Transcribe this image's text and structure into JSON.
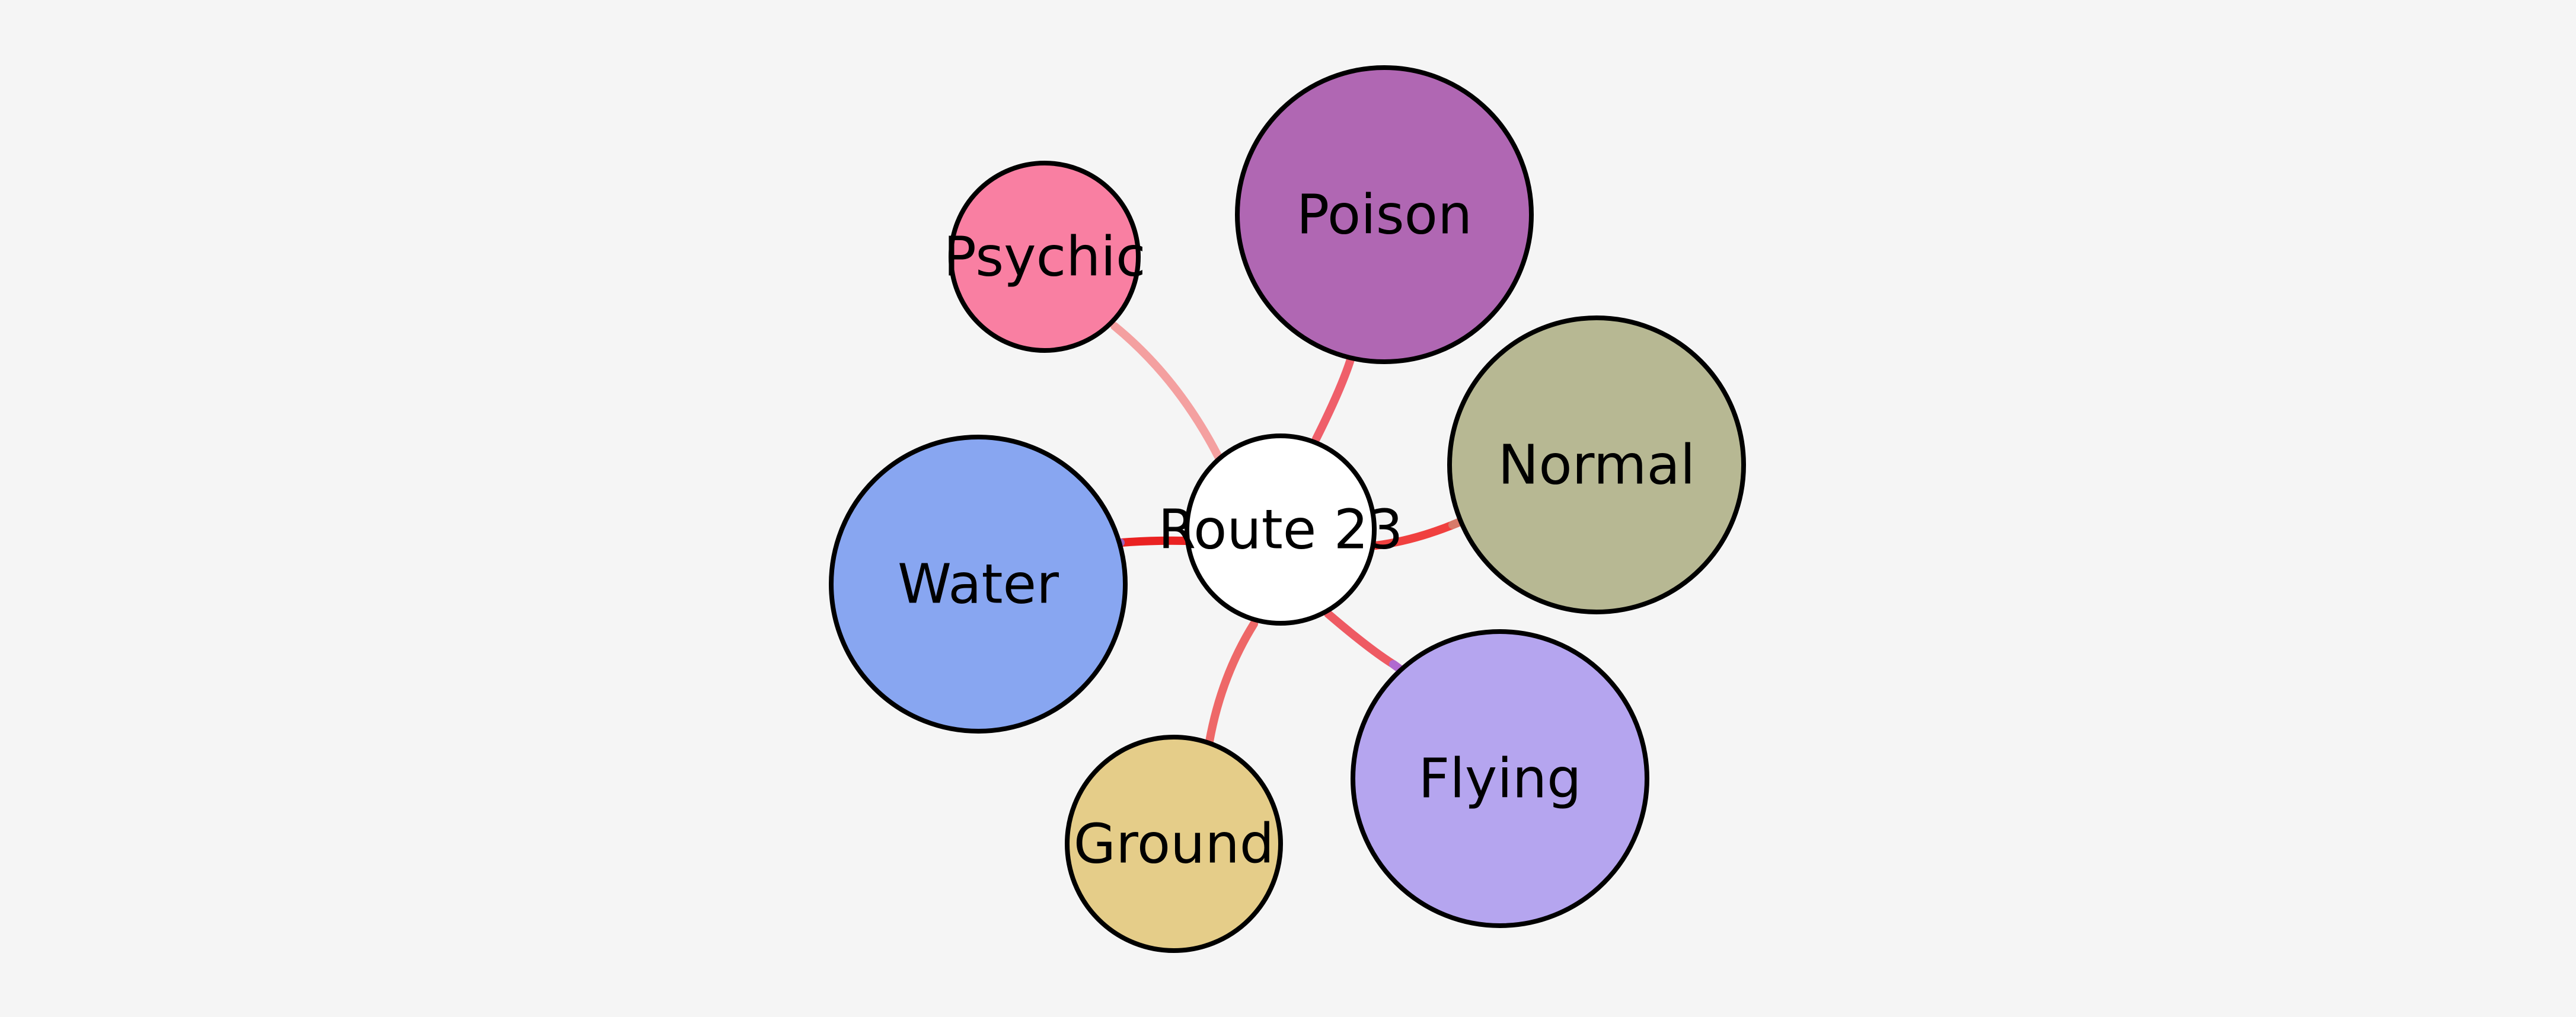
{
  "background": "#f5f5f5",
  "center": {
    "label": "Route 23",
    "color": "#ffffff",
    "stroke": "#000000"
  },
  "types": [
    {
      "id": "psychic",
      "label": "Psychic",
      "color": "#f97fa2",
      "stroke": "#000000"
    },
    {
      "id": "poison",
      "label": "Poison",
      "color": "#b067b3",
      "stroke": "#000000"
    },
    {
      "id": "normal",
      "label": "Normal",
      "color": "#b7b893",
      "stroke": "#000000"
    },
    {
      "id": "water",
      "label": "Water",
      "color": "#88a6f1",
      "stroke": "#000000"
    },
    {
      "id": "flying",
      "label": "Flying",
      "color": "#b5a5ef",
      "stroke": "#000000"
    },
    {
      "id": "ground",
      "label": "Ground",
      "color": "#e5cd89",
      "stroke": "#000000"
    }
  ],
  "links": [
    {
      "target": "psychic",
      "color": "#f4a0a0"
    },
    {
      "target": "poison",
      "color": "#ef5f6a"
    },
    {
      "target": "normal",
      "color": "#f0403f"
    },
    {
      "target": "water",
      "color": "#ea2222"
    },
    {
      "target": "flying",
      "color": "#ee5a63"
    },
    {
      "target": "ground",
      "color": "#ee6868"
    }
  ]
}
